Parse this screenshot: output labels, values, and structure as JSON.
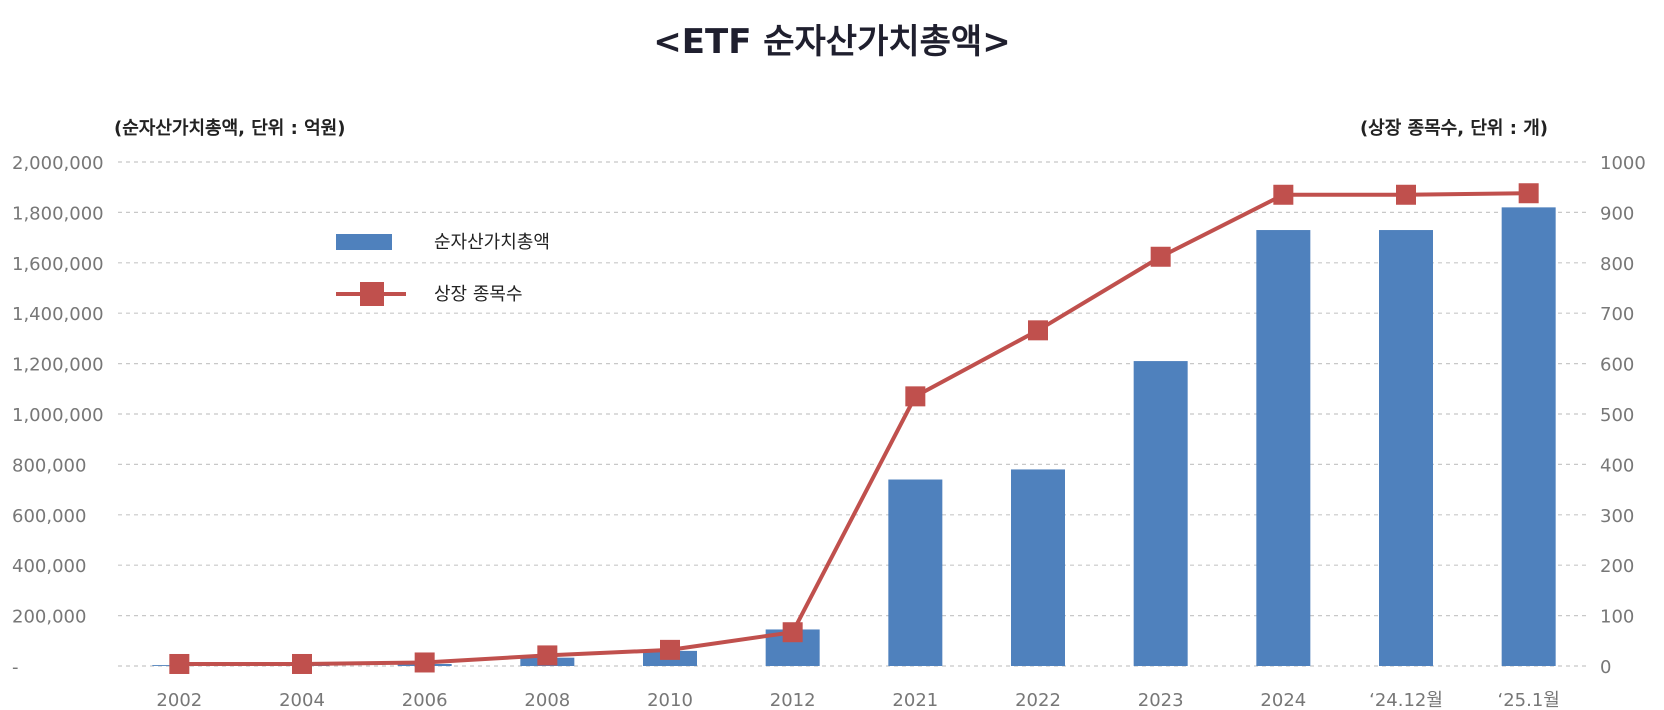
{
  "chart_data": {
    "type": "bar",
    "title": "<ETF 순자산가치총액>",
    "left_axis_label": "(순자산가치총액, 단위 : 억원)",
    "right_axis_label": "(상장 종목수, 단위 : 개)",
    "categories": [
      "2002",
      "2004",
      "2006",
      "2008",
      "2010",
      "2012",
      "2021",
      "2022",
      "2023",
      "2024",
      "‘24.12월",
      "‘25.1월"
    ],
    "left_ticks": [
      "-",
      "200,000",
      "400,000",
      "600,000",
      "800,000",
      "1,000,000",
      "1,200,000",
      "1,400,000",
      "1,600,000",
      "1,800,000",
      "2,000,000"
    ],
    "right_ticks": [
      "0",
      "100",
      "200",
      "300",
      "400",
      "500",
      "600",
      "700",
      "800",
      "900",
      "1000"
    ],
    "ylim_left": [
      0,
      2000000
    ],
    "ylim_right": [
      0,
      1000
    ],
    "grid": true,
    "legend_position": "top-left",
    "series": [
      {
        "name": "순자산가치총액",
        "type": "bar",
        "axis": "left",
        "color": "#4f81bd",
        "values": [
          3500,
          5000,
          8000,
          33000,
          60000,
          145000,
          740000,
          780000,
          1210000,
          1730000,
          1730000,
          1820000
        ]
      },
      {
        "name": "상장 종목수",
        "type": "line",
        "axis": "right",
        "color": "#c0504d",
        "values": [
          4,
          4,
          7,
          21,
          32,
          67,
          535,
          666,
          812,
          935,
          935,
          938
        ]
      }
    ]
  }
}
